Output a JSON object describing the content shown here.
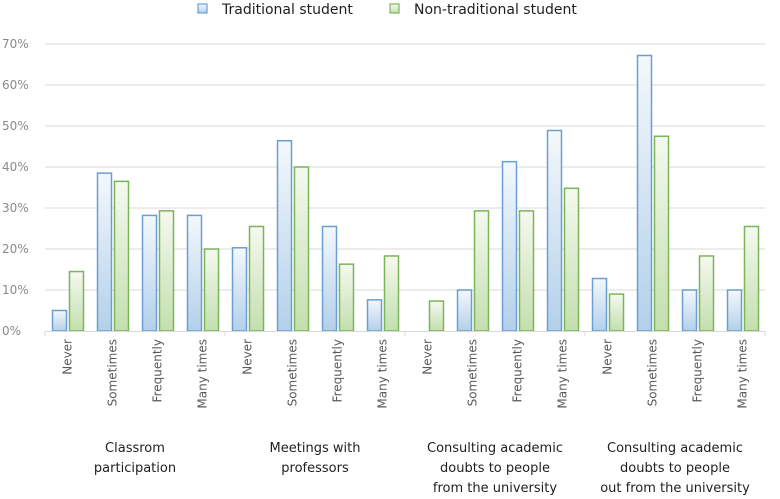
{
  "chart_data": {
    "type": "bar",
    "title": "",
    "xlabel": "",
    "ylabel": "",
    "ylim": [
      0,
      0.7
    ],
    "yticks": [
      "0%",
      "10%",
      "20%",
      "30%",
      "40%",
      "50%",
      "60%",
      "70%"
    ],
    "grid": true,
    "legend_position": "top-center",
    "groups": [
      {
        "label_lines": [
          "Classrom",
          "participation"
        ]
      },
      {
        "label_lines": [
          "Meetings with",
          "professors"
        ]
      },
      {
        "label_lines": [
          "Consulting academic",
          "doubts to people",
          "from the university"
        ]
      },
      {
        "label_lines": [
          "Consulting academic",
          "doubts to people",
          "out from the university"
        ]
      }
    ],
    "categories": [
      "Never",
      "Sometimes",
      "Frequently",
      "Many times",
      "Never",
      "Sometimes",
      "Frequently",
      "Many times",
      "Never",
      "Sometimes",
      "Frequently",
      "Many times",
      "Never",
      "Sometimes",
      "Frequently",
      "Many times"
    ],
    "series": [
      {
        "name": "Traditional student",
        "stroke": "#6a9fd4",
        "fill_top": "#f4f8fc",
        "fill_bottom": "#b3d0ea",
        "values": [
          0.05,
          0.385,
          0.282,
          0.282,
          0.203,
          0.464,
          0.255,
          0.076,
          0.0,
          0.1,
          0.413,
          0.489,
          0.128,
          0.672,
          0.1,
          0.1
        ]
      },
      {
        "name": "Non-traditional student",
        "stroke": "#7cb45a",
        "fill_top": "#f5f9f0",
        "fill_bottom": "#c3dfae",
        "values": [
          0.145,
          0.365,
          0.293,
          0.2,
          0.255,
          0.4,
          0.163,
          0.183,
          0.073,
          0.293,
          0.293,
          0.348,
          0.09,
          0.475,
          0.183,
          0.255
        ]
      }
    ]
  }
}
